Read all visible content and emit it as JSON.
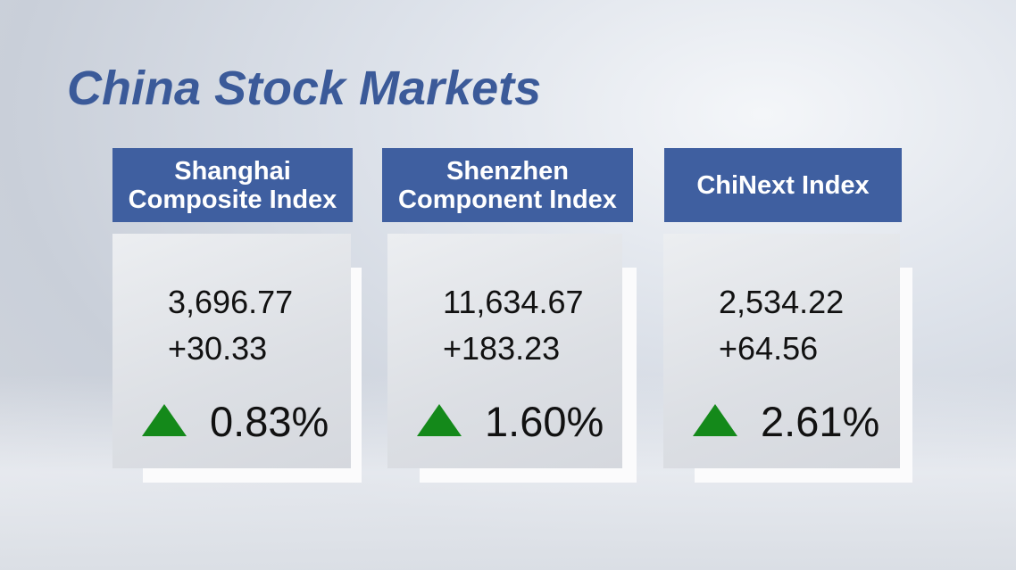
{
  "title": "China Stock Markets",
  "cards": [
    {
      "name_lines": [
        "Shanghai",
        "Composite Index"
      ],
      "value": "3,696.77",
      "change": "+30.33",
      "percent": "0.83%"
    },
    {
      "name_lines": [
        "Shenzhen",
        "Component Index"
      ],
      "value": "11,634.67",
      "change": "+183.23",
      "percent": "1.60%"
    },
    {
      "name_lines": [
        "ChiNext Index"
      ],
      "value": "2,534.22",
      "change": "+64.56",
      "percent": "2.61%"
    }
  ]
}
